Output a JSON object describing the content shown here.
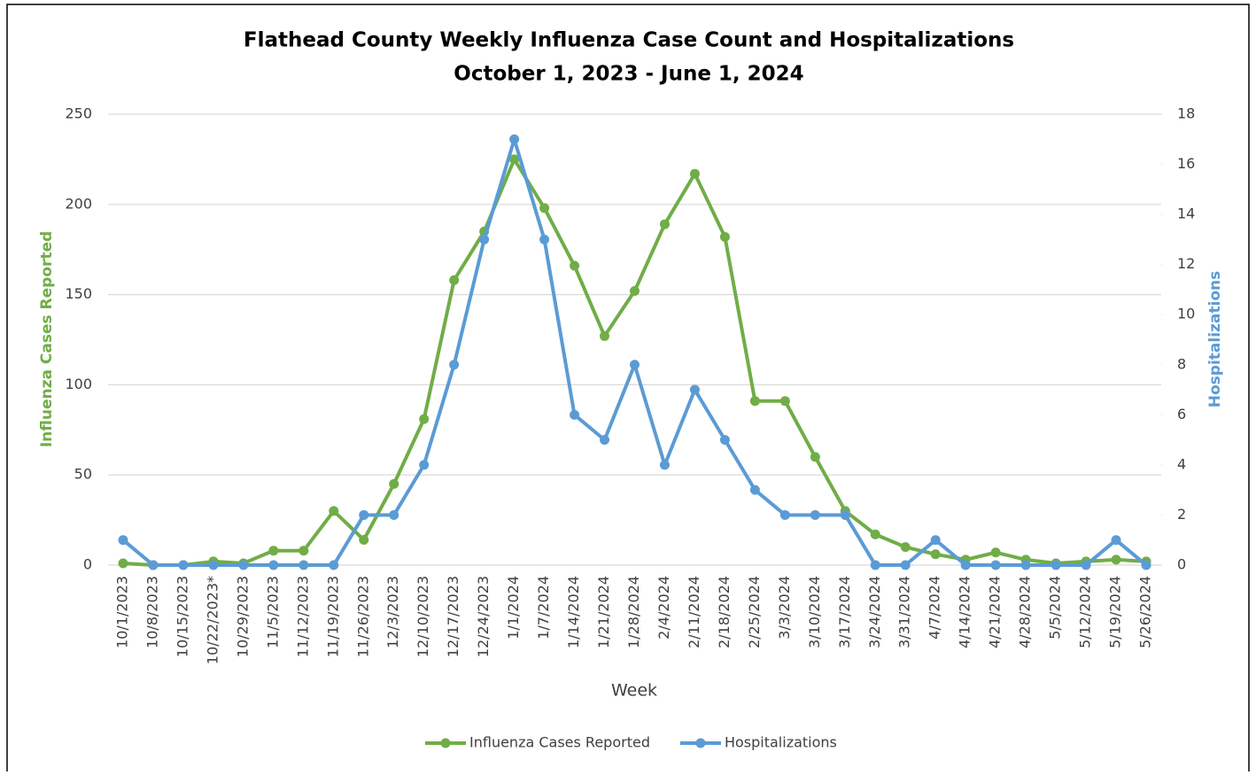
{
  "chart_data": {
    "type": "line",
    "title": "Flathead County Weekly Influenza Case Count and Hospitalizations",
    "subtitle": "October 1, 2023 - June 1, 2024",
    "x_label": "Week",
    "y_label": "Influenza Cases Reported",
    "y2_label": "Hospitalizations",
    "categories": [
      "10/1/2023",
      "10/8/2023",
      "10/15/2023",
      "10/22/2023*",
      "10/29/2023",
      "11/5/2023",
      "11/12/2023",
      "11/19/2023",
      "11/26/2023",
      "12/3/2023",
      "12/10/2023",
      "12/17/2023",
      "12/24/2023",
      "1/1/2024",
      "1/7/2024",
      "1/14/2024",
      "1/21/2024",
      "1/28/2024",
      "2/4/2024",
      "2/11/2024",
      "2/18/2024",
      "2/25/2024",
      "3/3/2024",
      "3/10/2024",
      "3/17/2024",
      "3/24/2024",
      "3/31/2024",
      "4/7/2024",
      "4/14/2024",
      "4/21/2024",
      "4/28/2024",
      "5/5/2024",
      "5/12/2024",
      "5/19/2024",
      "5/26/2024"
    ],
    "series": [
      {
        "name": "Influenza Cases Reported",
        "color": "#70ad47",
        "values": [
          1,
          0,
          0,
          2,
          1,
          8,
          8,
          30,
          14,
          45,
          81,
          158,
          185,
          225,
          198,
          166,
          127,
          152,
          189,
          217,
          182,
          91,
          91,
          60,
          30,
          17,
          10,
          6,
          3,
          7,
          3,
          1,
          2,
          3,
          2
        ]
      },
      {
        "name": "Hospitalizations",
        "color": "#5b9bd5",
        "axis": "y2",
        "values": [
          1,
          0,
          0,
          0,
          0,
          0,
          0,
          0,
          2,
          2,
          4,
          8,
          13,
          17,
          13,
          6,
          5,
          8,
          4,
          7,
          5,
          3,
          2,
          2,
          2,
          0,
          0,
          1,
          0,
          0,
          0,
          0,
          0,
          1,
          0
        ]
      }
    ],
    "ylim": [
      0,
      250
    ],
    "yticks": [
      0,
      50,
      100,
      150,
      200,
      250
    ],
    "y2lim": [
      0,
      18
    ],
    "y2ticks": [
      0,
      2,
      4,
      6,
      8,
      10,
      12,
      14,
      16,
      18
    ],
    "grid": true,
    "legend": "bottom"
  }
}
